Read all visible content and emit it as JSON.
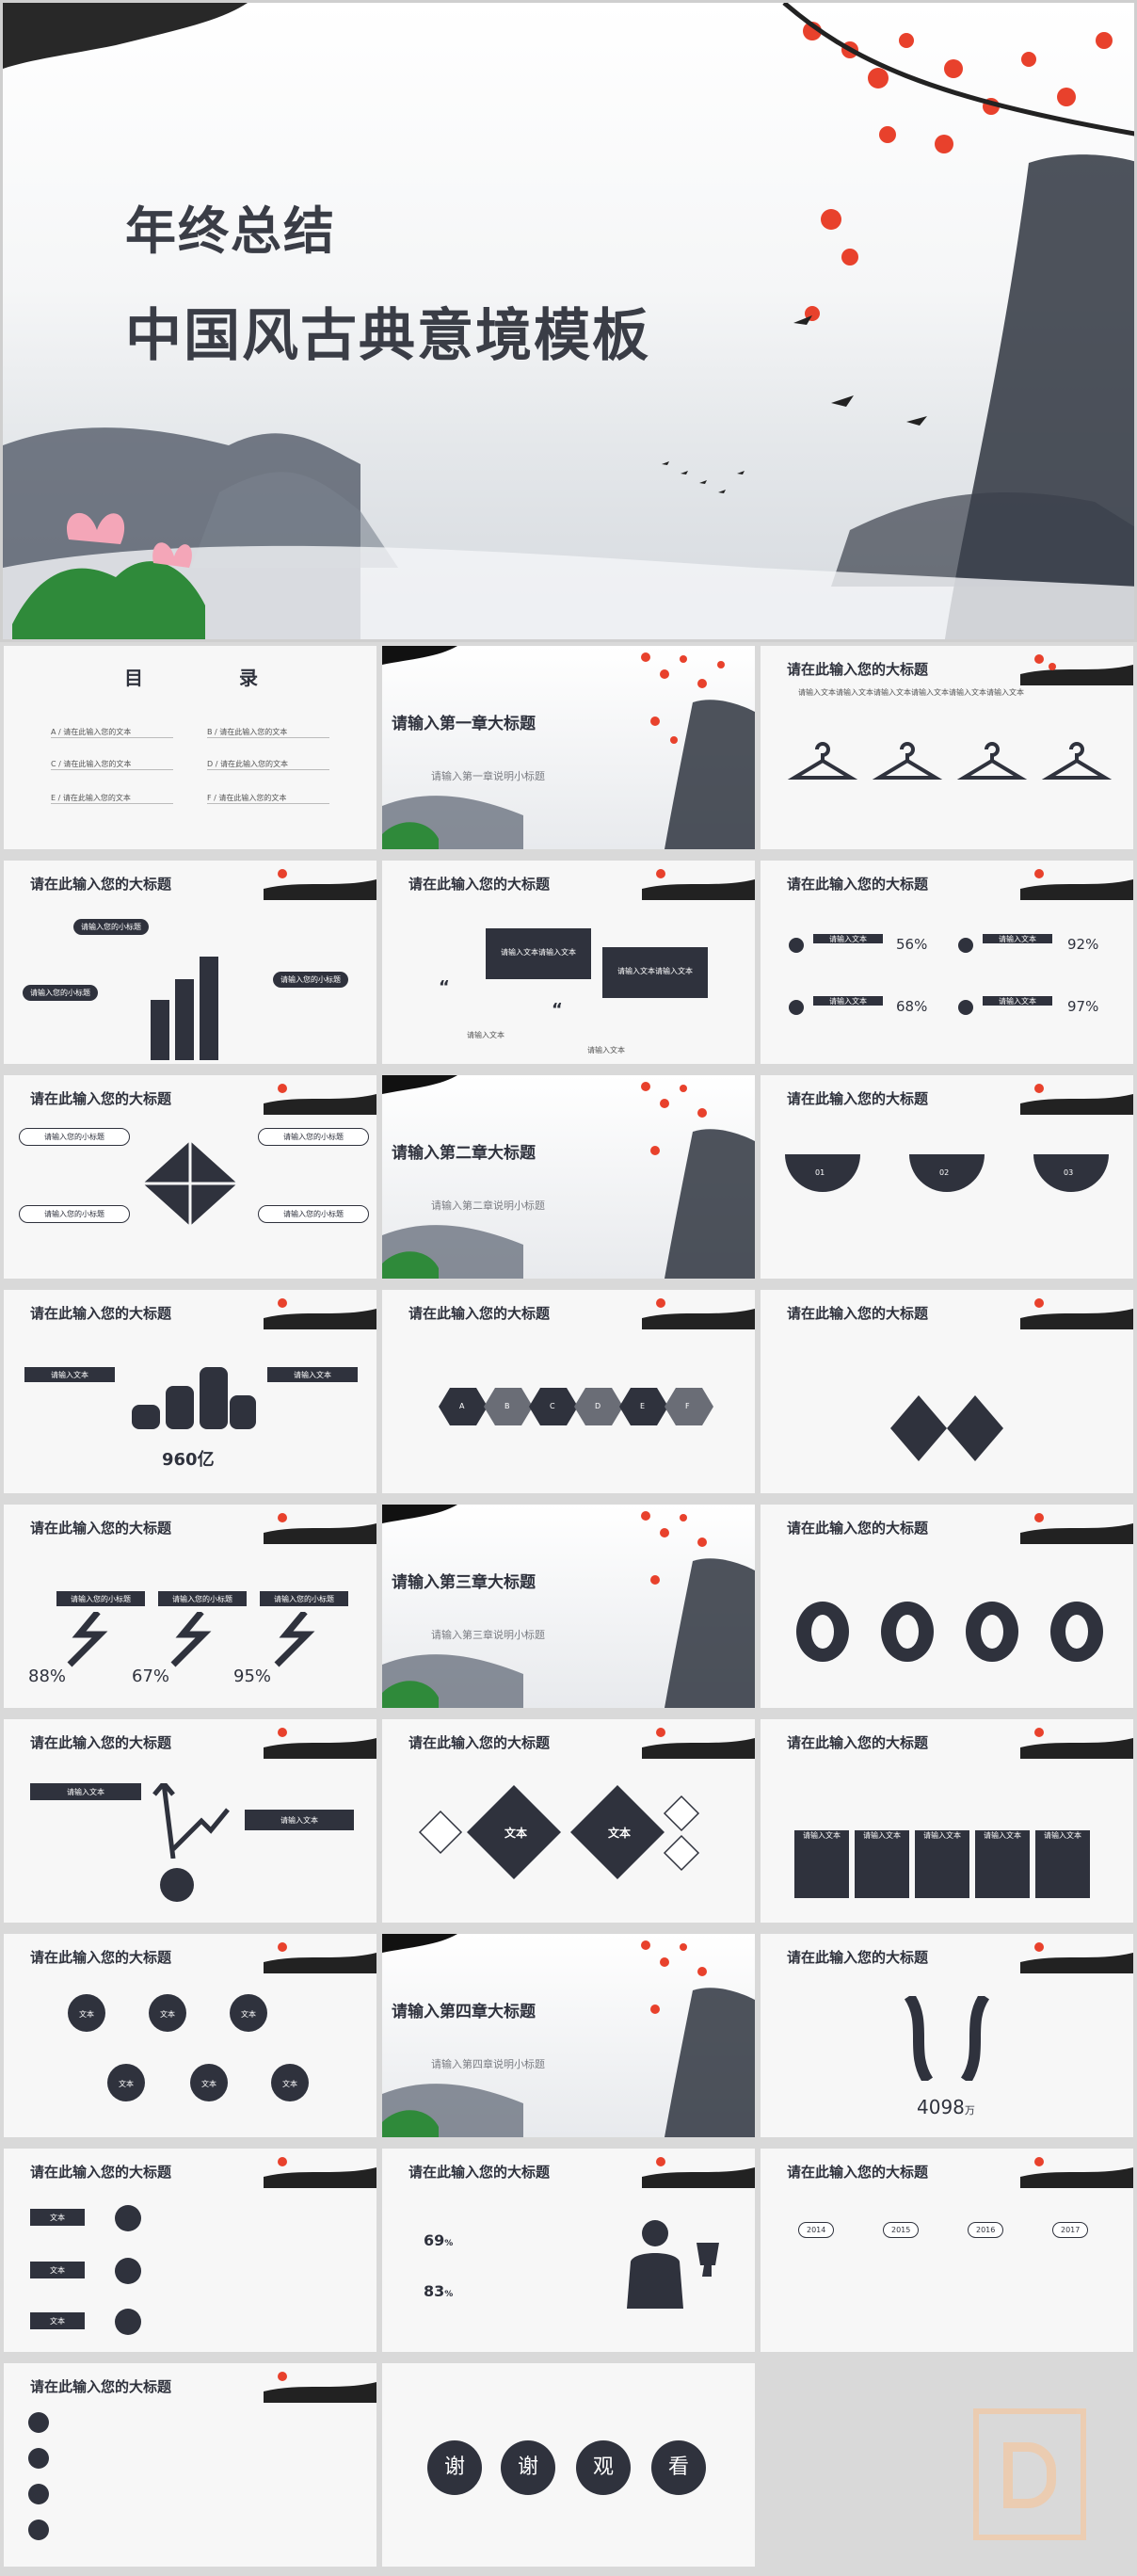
{
  "hero": {
    "title_line1": "年终总结",
    "title_line2": "中国风古典意境模板"
  },
  "common": {
    "slide_heading": "请在此输入您的大标题",
    "input_text": "请输入文本",
    "input_text_x2": "请输入文本请输入文本",
    "input_small_title": "请输入您的小标题",
    "text": "文本"
  },
  "toc": {
    "title_a": "目",
    "title_b": "录",
    "items": [
      {
        "letter": "A",
        "label": "请在此输入您的文本"
      },
      {
        "letter": "B",
        "label": "请在此输入您的文本"
      },
      {
        "letter": "C",
        "label": "请在此输入您的文本"
      },
      {
        "letter": "D",
        "label": "请在此输入您的文本"
      },
      {
        "letter": "E",
        "label": "请在此输入您的文本"
      },
      {
        "letter": "F",
        "label": "请在此输入您的文本"
      }
    ]
  },
  "chapters": [
    {
      "title": "请输入第一章大标题",
      "subtitle": "请输入第一章说明小标题"
    },
    {
      "title": "请输入第二章大标题",
      "subtitle": "请输入第二章说明小标题"
    },
    {
      "title": "请输入第三章大标题",
      "subtitle": "请输入第三章说明小标题"
    },
    {
      "title": "请输入第四章大标题",
      "subtitle": "请输入第四章说明小标题"
    }
  ],
  "percent_slide": {
    "values": [
      "56%",
      "92%",
      "68%",
      "97%"
    ]
  },
  "puzzle_slide": {
    "labels": [
      "请输入您的小标题",
      "请输入您的小标题",
      "请输入您的小标题",
      "请输入您的小标题"
    ]
  },
  "steps_slide": {
    "numbers": [
      "01",
      "02",
      "03"
    ]
  },
  "coins_slide": {
    "value": "960亿"
  },
  "hex_slide": {
    "letters": [
      "A",
      "B",
      "C",
      "D",
      "E",
      "F"
    ]
  },
  "arrow_slide": {
    "values": [
      "88%",
      "67%",
      "95%"
    ]
  },
  "diamond_slide": {
    "left": "文本",
    "right": "文本"
  },
  "sum_slide": {
    "value": "4098",
    "unit": "万"
  },
  "people_slide": {
    "values": [
      "69",
      "83"
    ],
    "unit": "%"
  },
  "timeline_slide": {
    "years": [
      "2014",
      "2015",
      "2016",
      "2017"
    ]
  },
  "thanks": {
    "chars": [
      "谢",
      "谢",
      "观",
      "看"
    ]
  },
  "colors": {
    "dark": "#2f323d",
    "red": "#e8412c",
    "bg": "#f7f7f7"
  }
}
